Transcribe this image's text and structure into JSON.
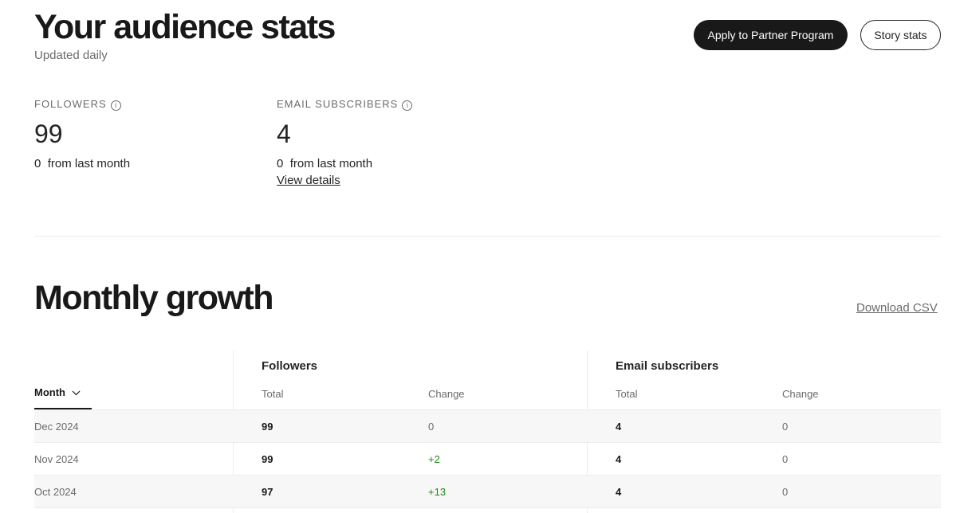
{
  "header": {
    "title": "Your audience stats",
    "subtitle": "Updated daily",
    "apply_button": "Apply to Partner Program",
    "story_stats_button": "Story stats"
  },
  "summary": {
    "followers": {
      "label": "FOLLOWERS",
      "value": "99",
      "change": "0",
      "change_text": "from last month"
    },
    "email": {
      "label": "EMAIL SUBSCRIBERS",
      "value": "4",
      "change": "0",
      "change_text": "from last month",
      "link": "View details"
    }
  },
  "growth": {
    "title": "Monthly growth",
    "download": "Download CSV",
    "month_header": "Month",
    "followers_header": "Followers",
    "email_header": "Email subscribers",
    "total_header": "Total",
    "change_header": "Change",
    "rows": [
      {
        "month": "Dec 2024",
        "f_total": "99",
        "f_change": "0",
        "e_total": "4",
        "e_change": "0"
      },
      {
        "month": "Nov 2024",
        "f_total": "99",
        "f_change": "+2",
        "e_total": "4",
        "e_change": "0"
      },
      {
        "month": "Oct 2024",
        "f_total": "97",
        "f_change": "+13",
        "e_total": "4",
        "e_change": "0"
      }
    ]
  },
  "colors": {
    "positive": "#1a8917",
    "primary": "#191919"
  }
}
